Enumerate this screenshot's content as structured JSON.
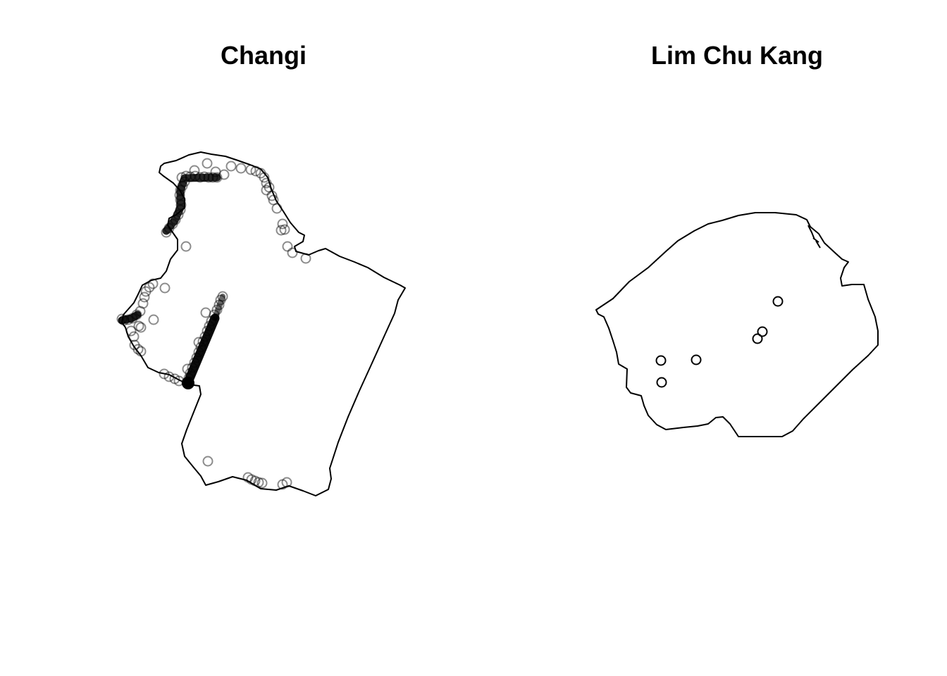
{
  "panels": [
    {
      "title": "Changi",
      "outline_color": "#000000",
      "point_style": "semi-transparent open circles",
      "point_color": "rgba(0,0,0,0.45)"
    },
    {
      "title": "Lim Chu Kang",
      "outline_color": "#000000",
      "point_style": "open circles",
      "point_color": "#000000",
      "point_count": 6
    }
  ]
}
